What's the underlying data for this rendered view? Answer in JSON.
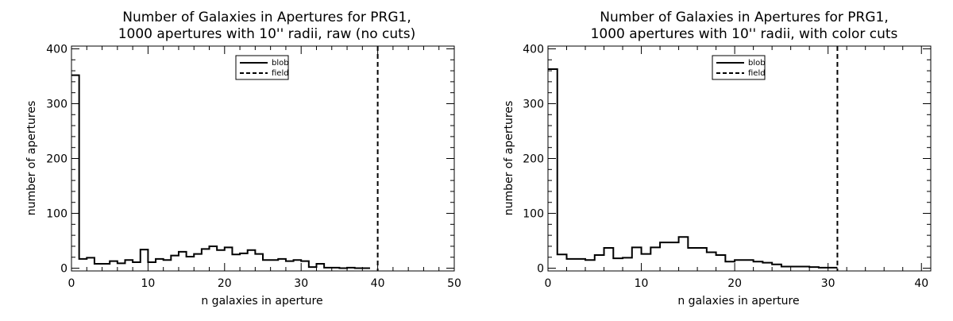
{
  "chart_data": [
    {
      "type": "histogram-step",
      "title": [
        "Number of Galaxies in Apertures for PRG1,",
        "1000 apertures with 10'' radii, raw (no cuts)"
      ],
      "xlabel": "n galaxies in aperture",
      "ylabel": "number of apertures",
      "xlim": [
        0,
        50
      ],
      "ylim": [
        -5,
        405
      ],
      "xticks": [
        0,
        10,
        20,
        30,
        40,
        50
      ],
      "yticks": [
        0,
        100,
        200,
        300,
        400
      ],
      "series": [
        {
          "name": "blob",
          "style": "solid",
          "bins": {
            "edges": [
              0,
              1,
              2,
              3,
              4,
              5,
              6,
              7,
              8,
              9,
              10,
              11,
              12,
              13,
              14,
              15,
              16,
              17,
              18,
              19,
              20,
              21,
              22,
              23,
              24,
              25,
              26,
              27,
              28,
              29,
              30,
              31,
              32,
              33,
              34,
              35,
              36,
              37,
              38,
              39
            ],
            "values": [
              352,
              17,
              19,
              8,
              8,
              13,
              9,
              15,
              11,
              34,
              11,
              17,
              15,
              23,
              30,
              21,
              26,
              35,
              40,
              33,
              38,
              25,
              27,
              33,
              26,
              15,
              15,
              17,
              13,
              15,
              13,
              2,
              8,
              1,
              1,
              0,
              1,
              0,
              0
            ]
          }
        },
        {
          "name": "field",
          "style": "dashed",
          "vline_x": 40
        }
      ]
    },
    {
      "type": "histogram-step",
      "title": [
        "Number of Galaxies in Apertures for PRG1,",
        "1000 apertures with 10'' radii, with color cuts"
      ],
      "xlabel": "n galaxies in aperture",
      "ylabel": "number of apertures",
      "xlim": [
        0,
        41
      ],
      "ylim": [
        -5,
        405
      ],
      "xticks": [
        0,
        10,
        20,
        30,
        40
      ],
      "yticks": [
        0,
        100,
        200,
        300,
        400
      ],
      "series": [
        {
          "name": "blob",
          "style": "solid",
          "bins": {
            "edges": [
              0,
              1,
              2,
              3,
              4,
              5,
              6,
              7,
              8,
              9,
              10,
              11,
              12,
              13,
              14,
              15,
              16,
              17,
              18,
              19,
              20,
              21,
              22,
              23,
              24,
              25,
              26,
              27,
              28,
              29,
              30,
              31
            ],
            "values": [
              363,
              25,
              17,
              17,
              15,
              24,
              37,
              18,
              19,
              38,
              26,
              38,
              47,
              47,
              57,
              37,
              37,
              29,
              24,
              12,
              15,
              15,
              12,
              10,
              7,
              3,
              3,
              3,
              2,
              1,
              1
            ]
          }
        },
        {
          "name": "field",
          "style": "dashed",
          "vline_x": 31
        }
      ]
    }
  ]
}
